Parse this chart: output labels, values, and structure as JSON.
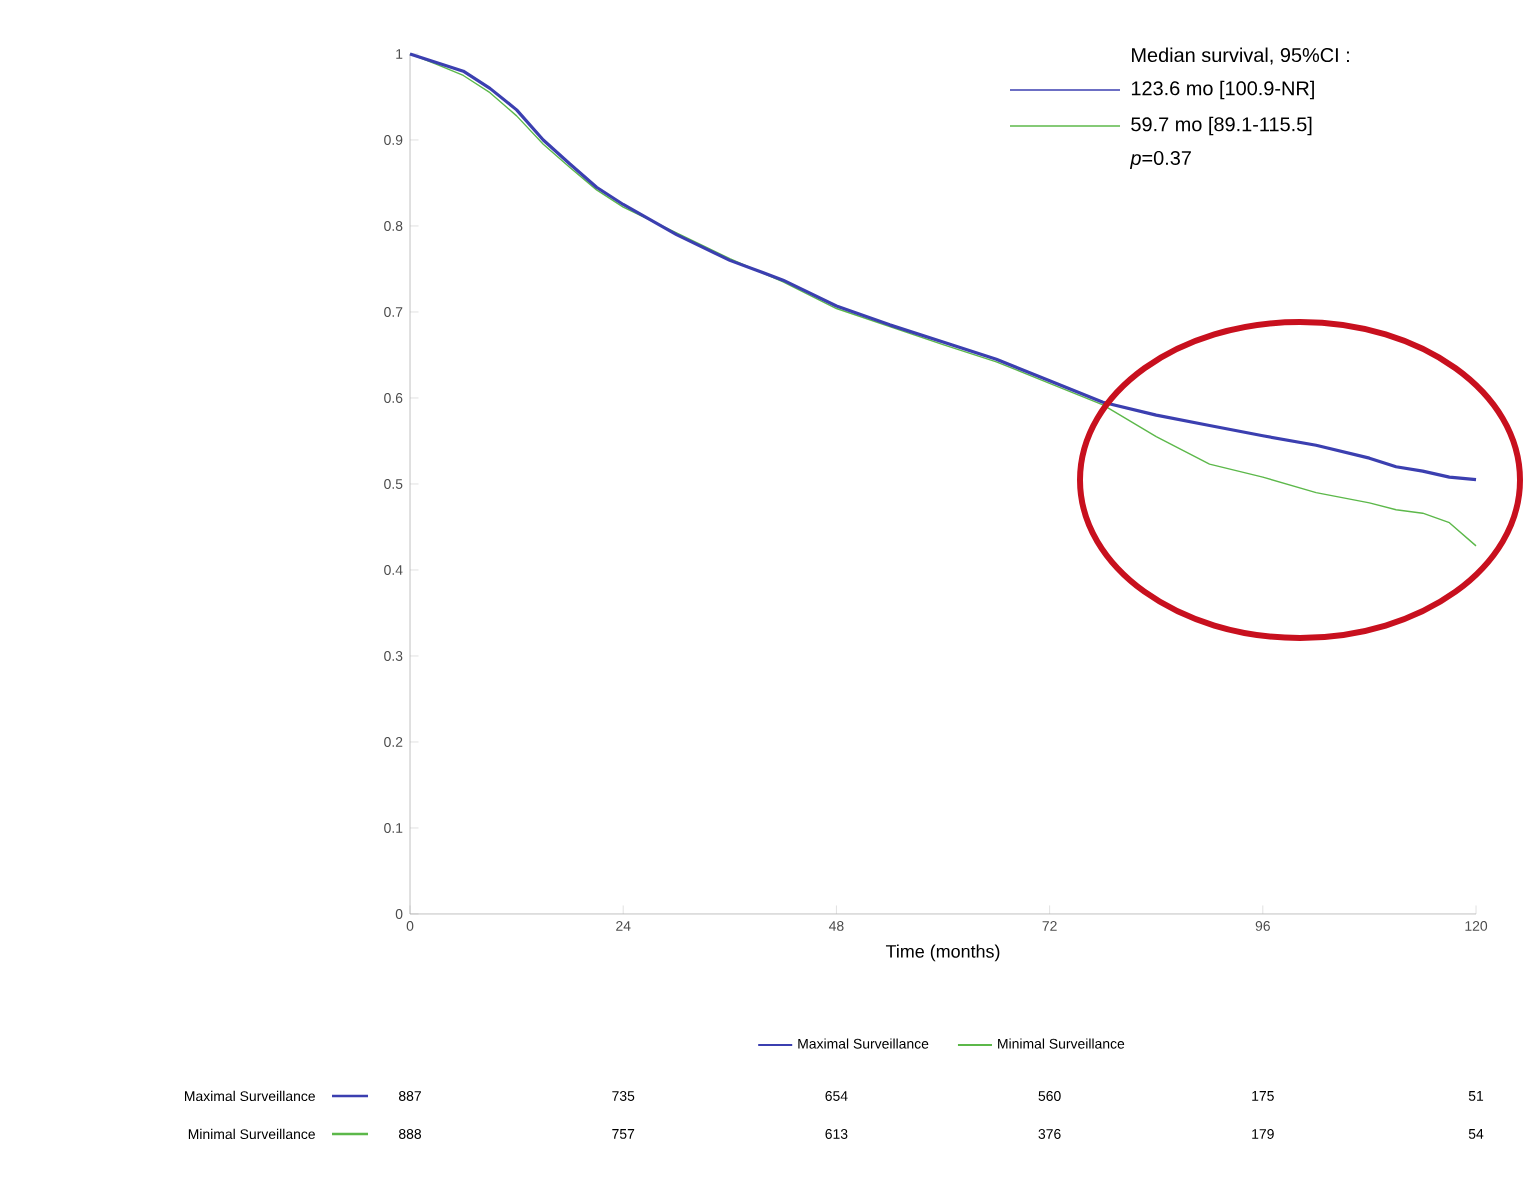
{
  "chart_data": {
    "type": "line",
    "x": [
      0,
      3,
      6,
      9,
      12,
      15,
      18,
      21,
      24,
      30,
      36,
      42,
      48,
      54,
      60,
      66,
      72,
      78,
      84,
      90,
      96,
      102,
      108,
      111,
      114,
      117,
      120
    ],
    "series": [
      {
        "name": "Maximal Surveillance",
        "color": "#3b3fb0",
        "values": [
          1,
          0.99,
          0.98,
          0.96,
          0.935,
          0.9,
          0.872,
          0.845,
          0.825,
          0.79,
          0.76,
          0.737,
          0.707,
          0.685,
          0.665,
          0.645,
          0.62,
          0.595,
          0.58,
          0.568,
          0.556,
          0.545,
          0.53,
          0.52,
          0.515,
          0.508,
          0.505
        ]
      },
      {
        "name": "Minimal Surveillance",
        "color": "#5cb84a",
        "values": [
          1,
          0.988,
          0.975,
          0.955,
          0.928,
          0.895,
          0.868,
          0.842,
          0.822,
          0.792,
          0.762,
          0.735,
          0.704,
          0.683,
          0.662,
          0.642,
          0.617,
          0.592,
          0.555,
          0.523,
          0.508,
          0.49,
          0.478,
          0.47,
          0.466,
          0.455,
          0.428
        ]
      }
    ],
    "xlabel": "Time (months)",
    "xlim": [
      0,
      120
    ],
    "xticks": [
      0,
      24,
      48,
      72,
      96,
      120
    ],
    "ylim": [
      0,
      1
    ],
    "yticks": [
      0,
      0.1,
      0.2,
      0.3,
      0.4,
      0.5,
      0.6,
      0.7,
      0.8,
      0.9,
      1
    ],
    "legend": "bottom",
    "annotations": [
      "Median survival, 95%CI :",
      "123.6 mo [100.9-NR]",
      "59.7 mo [89.1-115.5]",
      "*p*=0.37",
      "887",
      "735",
      "654",
      "560",
      "175",
      "51",
      "888",
      "757",
      "613",
      "376",
      "179",
      "54"
    ]
  }
}
